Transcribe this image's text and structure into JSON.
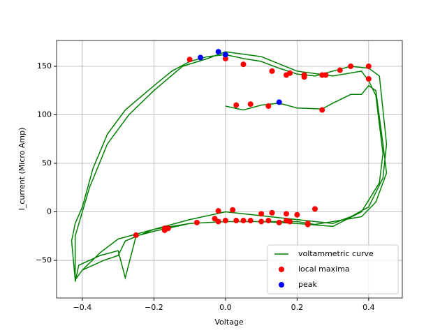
{
  "chart_data": {
    "type": "line",
    "xlabel": "Voltage",
    "ylabel": "I_current (Micro Amp)",
    "xlim": [
      -0.472,
      0.494
    ],
    "ylim": [
      -88.8,
      176.6
    ],
    "xticks": [
      {
        "value": -0.4,
        "label": "−0.4"
      },
      {
        "value": -0.2,
        "label": "−0.2"
      },
      {
        "value": 0,
        "label": "0.0"
      },
      0.2,
      0.4
    ],
    "yticks": [
      {
        "value": -50,
        "label": "−50"
      },
      0,
      50,
      100,
      150
    ],
    "grid": true,
    "legend": "lower right",
    "series": [
      {
        "name": "voltammetric curve",
        "type": "line",
        "color": "green",
        "x": [
          0.0,
          0.05,
          0.1,
          0.15,
          0.2,
          0.27,
          0.3,
          0.35,
          0.38,
          0.4,
          0.42,
          0.44,
          0.45,
          0.42,
          0.38,
          0.3,
          0.25,
          0.2,
          0.1,
          0.0,
          -0.1,
          -0.2,
          -0.3,
          -0.35,
          -0.4,
          -0.42,
          -0.43,
          -0.42,
          -0.4,
          -0.37,
          -0.33,
          -0.28,
          -0.2,
          -0.15,
          -0.1,
          -0.05,
          0.0,
          0.05,
          0.1,
          0.15,
          0.2,
          0.25,
          0.3,
          0.35,
          0.4,
          0.43,
          0.45,
          0.44,
          0.4,
          0.35,
          0.3,
          0.2,
          0.1,
          0.0,
          -0.1,
          -0.2,
          -0.28,
          -0.3,
          -0.34,
          -0.4,
          -0.42,
          -0.42,
          -0.38,
          -0.33,
          -0.27,
          -0.2,
          -0.12,
          -0.05,
          0.0,
          0.1,
          0.2,
          0.3,
          0.38,
          0.4,
          0.42,
          0.44,
          0.43,
          0.38,
          0.3,
          0.2,
          0.1,
          0.0,
          -0.1,
          -0.2,
          -0.25,
          -0.28,
          -0.3,
          -0.35,
          -0.41,
          -0.42
        ],
        "values": [
          109,
          105,
          110,
          112,
          107,
          106,
          112,
          121,
          121,
          130,
          125,
          70,
          40,
          10,
          -5,
          -10,
          -13,
          -10,
          -10,
          -10,
          -12,
          -18,
          -28,
          -42,
          -60,
          -70,
          -30,
          -12,
          5,
          45,
          80,
          105,
          130,
          145,
          155,
          160,
          162,
          158,
          155,
          148,
          142,
          140,
          145,
          150,
          148,
          140,
          70,
          35,
          5,
          -5,
          -12,
          -8,
          -4,
          0,
          -8,
          -18,
          -30,
          -45,
          -50,
          -60,
          -70,
          -25,
          25,
          70,
          100,
          125,
          150,
          158,
          165,
          160,
          145,
          140,
          145,
          135,
          120,
          60,
          30,
          0,
          -15,
          -12,
          -10,
          -10,
          -12,
          -20,
          -25,
          -68,
          -40,
          -45,
          -55,
          -72
        ]
      },
      {
        "name": "local maxima",
        "type": "scatter",
        "color": "red",
        "x": [
          -0.1,
          0.0,
          0.05,
          0.13,
          0.17,
          0.18,
          0.22,
          0.22,
          0.27,
          0.28,
          0.32,
          0.35,
          0.4,
          0.4,
          0.03,
          0.07,
          0.12,
          0.27,
          -0.25,
          -0.17,
          -0.17,
          -0.16,
          -0.08,
          -0.03,
          -0.02,
          -0.02,
          0.0,
          0.02,
          0.03,
          0.05,
          0.07,
          0.1,
          0.1,
          0.12,
          0.13,
          0.15,
          0.17,
          0.17,
          0.18,
          0.2,
          0.23,
          0.23,
          0.25
        ],
        "values": [
          157,
          158,
          152,
          145,
          141,
          143,
          141,
          139,
          141,
          141,
          146,
          150,
          150,
          137,
          110,
          111,
          109,
          105,
          -24,
          -17,
          -19,
          -17,
          -11,
          -7,
          1,
          -10,
          -9,
          2,
          -9,
          -9,
          -9,
          -2,
          -10,
          -9,
          -1,
          -11,
          -2,
          -9,
          -10,
          -3,
          -12,
          -13,
          3
        ]
      },
      {
        "name": "peak",
        "type": "scatter",
        "color": "blue",
        "x": [
          -0.02,
          0.0,
          -0.07,
          0.15
        ],
        "values": [
          165,
          162,
          159,
          113
        ]
      }
    ]
  }
}
